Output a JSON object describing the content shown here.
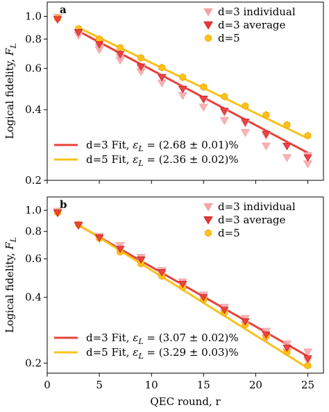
{
  "x_axis": {
    "label": "QEC round, r",
    "ticks": [
      0,
      5,
      10,
      15,
      20,
      25
    ],
    "xlim": [
      0,
      26.5
    ]
  },
  "legend_labels": {
    "individual": "d=3 individual",
    "average": "d=3 average",
    "d5": "d=5"
  },
  "colors": {
    "individual": "#f4a4a8",
    "average": "#e83a3a",
    "fit_d3": "#e8413a",
    "fit_d5": "#f7c21a",
    "d5_marker": "#fcc419",
    "d5_marker_edge": "#f5a50a"
  },
  "chart_data": [
    {
      "type": "scatter",
      "panel_label": "a",
      "ylabel": "Logical fidelity, F_L",
      "yscale": "log",
      "ylim": [
        0.2,
        1.15
      ],
      "yticks": [
        0.2,
        0.4,
        0.6,
        0.8,
        1.0
      ],
      "ytick_labels": [
        "0.2",
        "0.4",
        "0.6",
        "0.8",
        "1.0"
      ],
      "legend_position": "top-right",
      "series": [
        {
          "name": "d=3 individual",
          "x": [
            1,
            1,
            3,
            3,
            5,
            5,
            7,
            7,
            9,
            9,
            11,
            11,
            13,
            13,
            15,
            15,
            17,
            17,
            19,
            19,
            21,
            21,
            23,
            23,
            25,
            25
          ],
          "y": [
            0.99,
            0.97,
            0.85,
            0.83,
            0.74,
            0.72,
            0.67,
            0.65,
            0.6,
            0.58,
            0.55,
            0.52,
            0.49,
            0.46,
            0.44,
            0.41,
            0.39,
            0.36,
            0.35,
            0.32,
            0.31,
            0.28,
            0.28,
            0.25,
            0.255,
            0.235
          ]
        },
        {
          "name": "d=3 average",
          "x": [
            1,
            3,
            5,
            7,
            9,
            11,
            13,
            15,
            17,
            19,
            21,
            23,
            25
          ],
          "y": [
            0.97,
            0.855,
            0.76,
            0.69,
            0.61,
            0.55,
            0.49,
            0.445,
            0.395,
            0.355,
            0.315,
            0.28,
            0.25
          ]
        },
        {
          "name": "d=5",
          "x": [
            1,
            3,
            5,
            7,
            9,
            11,
            13,
            15,
            17,
            19,
            21,
            23,
            25
          ],
          "y": [
            0.98,
            0.885,
            0.8,
            0.735,
            0.665,
            0.605,
            0.55,
            0.5,
            0.455,
            0.415,
            0.38,
            0.345,
            0.31
          ]
        }
      ],
      "fits": [
        {
          "label": "d=3 Fit, ",
          "eps_value": " = (2.68 ± 0.01)%",
          "color_key": "fit_d3",
          "start": [
            3,
            0.865
          ],
          "end": [
            25,
            0.262
          ]
        },
        {
          "label": "d=5 Fit, ",
          "eps_value": " = (2.36 ± 0.02)%",
          "color_key": "fit_d5",
          "start": [
            3,
            0.895
          ],
          "end": [
            25,
            0.302
          ]
        }
      ]
    },
    {
      "type": "scatter",
      "panel_label": "b",
      "ylabel": "Logical fidelity, F_L",
      "yscale": "log",
      "ylim": [
        0.18,
        1.15
      ],
      "yticks": [
        0.2,
        0.4,
        0.6,
        0.8,
        1.0
      ],
      "ytick_labels": [
        "0.2",
        "0.4",
        "0.6",
        "0.8",
        "1.0"
      ],
      "legend_position": "top-right",
      "series": [
        {
          "name": "d=3 individual",
          "x": [
            1,
            1,
            3,
            3,
            5,
            5,
            7,
            7,
            9,
            9,
            11,
            11,
            13,
            13,
            15,
            15,
            17,
            17,
            19,
            19,
            21,
            21,
            23,
            23,
            25,
            25
          ],
          "y": [
            0.99,
            0.97,
            0.86,
            0.85,
            0.76,
            0.74,
            0.69,
            0.66,
            0.61,
            0.59,
            0.53,
            0.51,
            0.47,
            0.45,
            0.41,
            0.39,
            0.36,
            0.34,
            0.32,
            0.3,
            0.28,
            0.26,
            0.245,
            0.225,
            0.225,
            0.205
          ]
        },
        {
          "name": "d=3 average",
          "x": [
            1,
            3,
            5,
            7,
            9,
            11,
            13,
            15,
            17,
            19,
            21,
            23,
            25
          ],
          "y": [
            0.975,
            0.855,
            0.75,
            0.665,
            0.595,
            0.52,
            0.46,
            0.4,
            0.35,
            0.31,
            0.27,
            0.235,
            0.21
          ]
        },
        {
          "name": "d=5",
          "x": [
            1,
            3,
            5,
            7,
            9,
            11,
            13,
            15,
            17,
            19,
            21,
            23,
            25
          ],
          "y": [
            0.975,
            0.86,
            0.745,
            0.645,
            0.57,
            0.5,
            0.445,
            0.39,
            0.34,
            0.3,
            0.265,
            0.225,
            0.195
          ]
        }
      ],
      "fits": [
        {
          "label": "d=3 Fit, ",
          "eps_value": " = (3.07 ± 0.02)%",
          "color_key": "fit_d3",
          "start": [
            3,
            0.855
          ],
          "end": [
            25,
            0.215
          ]
        },
        {
          "label": "d=5 Fit, ",
          "eps_value": " = (3.29 ± 0.03)%",
          "color_key": "fit_d5",
          "start": [
            3,
            0.86
          ],
          "end": [
            25,
            0.19
          ]
        }
      ]
    }
  ]
}
